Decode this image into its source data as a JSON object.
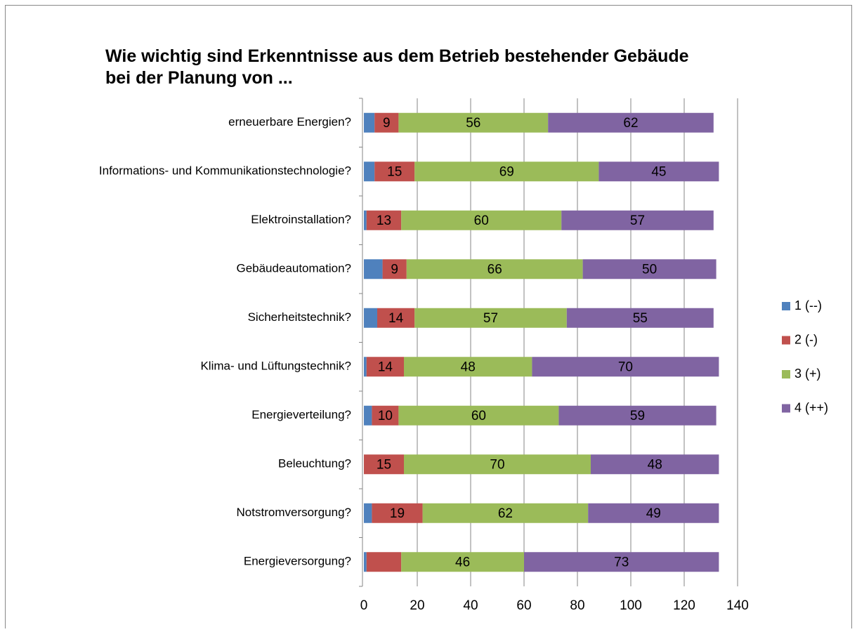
{
  "chart_data": {
    "type": "stacked_barh",
    "title": [
      "Wie wichtig sind Erkenntnisse aus dem Betrieb bestehender Gebäude",
      "bei der Planung von ..."
    ],
    "categories": [
      "erneuerbare Energien?",
      "Informations- und Kommunikationstechnologie?",
      "Elektroinstallation?",
      "Gebäudeautomation?",
      "Sicherheitstechnik?",
      "Klima- und Lüftungstechnik?",
      "Energieverteilung?",
      "Beleuchtung?",
      "Notstromversorgung?",
      "Energieversorgung?"
    ],
    "series": [
      {
        "name": "1 (--)",
        "color": "#4f81bd",
        "values": [
          4,
          4,
          1,
          7,
          5,
          1,
          3,
          0,
          3,
          1
        ]
      },
      {
        "name": "2 (-)",
        "color": "#c0504d",
        "values": [
          9,
          15,
          13,
          9,
          14,
          14,
          10,
          15,
          19,
          13
        ],
        "value_labels": [
          "9",
          "15",
          "13",
          "9",
          "14",
          "14",
          "10",
          "15",
          "19",
          null
        ]
      },
      {
        "name": "3 (+)",
        "color": "#9bbb59",
        "values": [
          56,
          69,
          60,
          66,
          57,
          48,
          60,
          70,
          62,
          46
        ],
        "data_labels": true
      },
      {
        "name": "4 (++)",
        "color": "#8064a2",
        "values": [
          62,
          45,
          57,
          50,
          55,
          70,
          59,
          48,
          49,
          73
        ],
        "data_labels": true
      }
    ],
    "xlim": [
      0,
      140
    ],
    "xticks": [
      0,
      20,
      40,
      60,
      80,
      100,
      120,
      140
    ],
    "grid": true,
    "legend": "right"
  }
}
